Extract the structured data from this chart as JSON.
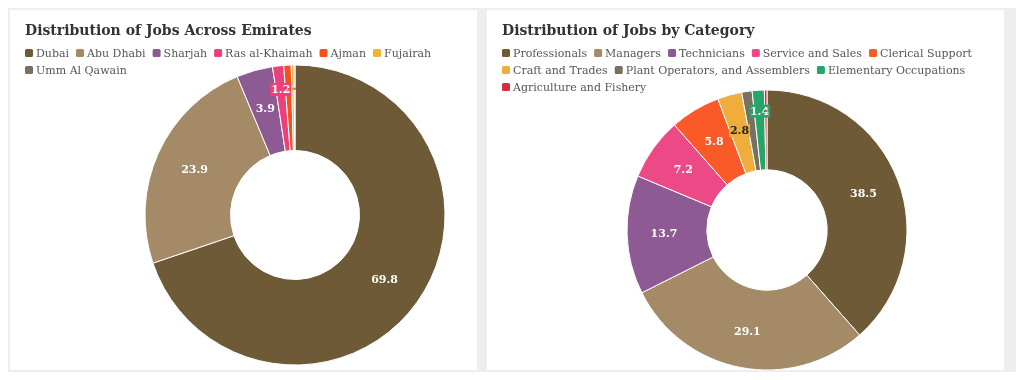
{
  "chart_data": [
    {
      "type": "donut",
      "title": "Distribution of Jobs Across Emirates",
      "categories": [
        "Dubai",
        "Abu Dhabi",
        "Sharjah",
        "Ras al-Khaimah",
        "Ajman",
        "Fujairah",
        "Umm Al Qawain"
      ],
      "values": [
        69.8,
        23.9,
        3.9,
        1.2,
        0.8,
        0.3,
        0.1
      ],
      "value_labels": [
        "69.8",
        "23.9",
        "3.9",
        "1.2",
        null,
        null,
        null
      ],
      "colors": [
        "#6e5a36",
        "#a48a66",
        "#8e5a94",
        "#ec407a",
        "#f4511e",
        "#f2b035",
        "#7a6e5e"
      ],
      "legend": "top left"
    },
    {
      "type": "donut",
      "title": "Distribution of Jobs by Category",
      "categories": [
        "Professionals",
        "Managers",
        "Technicians",
        "Service and Sales",
        "Clerical Support",
        "Craft and Trades",
        "Plant Operators, and Assemblers",
        "Elementary Occupations",
        "Agriculture and Fishery"
      ],
      "values": [
        38.5,
        29.1,
        13.7,
        7.2,
        5.8,
        2.8,
        1.2,
        1.4,
        0.3
      ],
      "value_labels": [
        "38.5",
        "29.1",
        "13.7",
        "7.2",
        "5.8",
        "2.8",
        null,
        "1.4",
        null
      ],
      "colors": [
        "#6e5a36",
        "#a48a66",
        "#8e5a94",
        "#ec4a86",
        "#fa5a28",
        "#efae3c",
        "#7a705f",
        "#26a46a",
        "#d32f3f"
      ],
      "legend": "top left"
    }
  ]
}
